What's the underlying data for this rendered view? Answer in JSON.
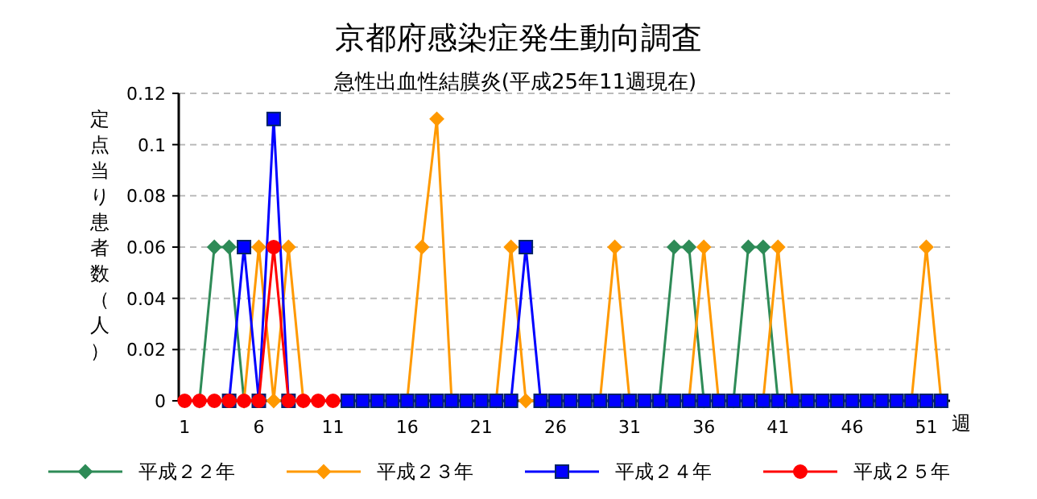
{
  "chart_data": {
    "type": "line",
    "title": "京都府感染症発生動向調査",
    "subtitle": "急性出血性結膜炎(平成25年11週現在)",
    "xlabel": "週",
    "ylabel": "定点当り患者数（人）",
    "x": [
      1,
      2,
      3,
      4,
      5,
      6,
      7,
      8,
      9,
      10,
      11,
      12,
      13,
      14,
      15,
      16,
      17,
      18,
      19,
      20,
      21,
      22,
      23,
      24,
      25,
      26,
      27,
      28,
      29,
      30,
      31,
      32,
      33,
      34,
      35,
      36,
      37,
      38,
      39,
      40,
      41,
      42,
      43,
      44,
      45,
      46,
      47,
      48,
      49,
      50,
      51,
      52
    ],
    "xlim": [
      0.6,
      52.6
    ],
    "xticks": [
      1,
      6,
      11,
      16,
      21,
      26,
      31,
      36,
      41,
      46,
      51
    ],
    "ylim": [
      0,
      0.12
    ],
    "yticks": [
      0,
      0.02,
      0.04,
      0.06,
      0.08,
      0.1,
      0.12
    ],
    "grid": "y",
    "legend": "bottom",
    "series": [
      {
        "name": "平成２２年",
        "color": "#2e8b57",
        "marker": "diamond",
        "values": [
          null,
          0,
          0.06,
          0.06,
          0,
          null,
          null,
          null,
          null,
          null,
          null,
          null,
          null,
          null,
          null,
          null,
          null,
          null,
          null,
          null,
          null,
          null,
          null,
          null,
          null,
          null,
          null,
          null,
          null,
          null,
          null,
          null,
          0,
          0.06,
          0.06,
          0,
          null,
          0,
          0.06,
          0.06,
          0,
          null,
          null,
          null,
          null,
          null,
          null,
          null,
          null,
          null,
          null,
          null
        ]
      },
      {
        "name": "平成２３年",
        "color": "#ff9900",
        "marker": "diamond",
        "values": [
          null,
          null,
          null,
          null,
          0,
          0.06,
          0,
          0.06,
          0,
          null,
          null,
          null,
          null,
          null,
          null,
          0,
          0.06,
          0.11,
          0,
          null,
          null,
          0,
          0.06,
          0,
          0,
          null,
          null,
          null,
          0,
          0.06,
          0,
          null,
          null,
          null,
          0,
          0.06,
          0,
          null,
          null,
          0,
          0.06,
          0,
          null,
          null,
          null,
          null,
          null,
          null,
          null,
          0,
          0.06,
          0
        ]
      },
      {
        "name": "平成２４年",
        "color": "#0000ff",
        "marker": "square",
        "values": [
          null,
          null,
          null,
          0,
          0.06,
          0,
          0.11,
          0,
          null,
          null,
          null,
          0,
          0,
          0,
          0,
          0,
          0,
          0,
          0,
          0,
          0,
          0,
          0,
          0.06,
          0,
          0,
          0,
          0,
          0,
          0,
          0,
          0,
          0,
          0,
          0,
          0,
          0,
          0,
          0,
          0,
          0,
          0,
          0,
          0,
          0,
          0,
          0,
          0,
          0,
          0,
          0,
          0
        ]
      },
      {
        "name": "平成２５年",
        "color": "#ff0000",
        "marker": "circle",
        "values": [
          0,
          0,
          0,
          0,
          0,
          0,
          0.06,
          0,
          0,
          0,
          0,
          null,
          null,
          null,
          null,
          null,
          null,
          null,
          null,
          null,
          null,
          null,
          null,
          null,
          null,
          null,
          null,
          null,
          null,
          null,
          null,
          null,
          null,
          null,
          null,
          null,
          null,
          null,
          null,
          null,
          null,
          null,
          null,
          null,
          null,
          null,
          null,
          null,
          null,
          null,
          null,
          null
        ]
      }
    ]
  }
}
